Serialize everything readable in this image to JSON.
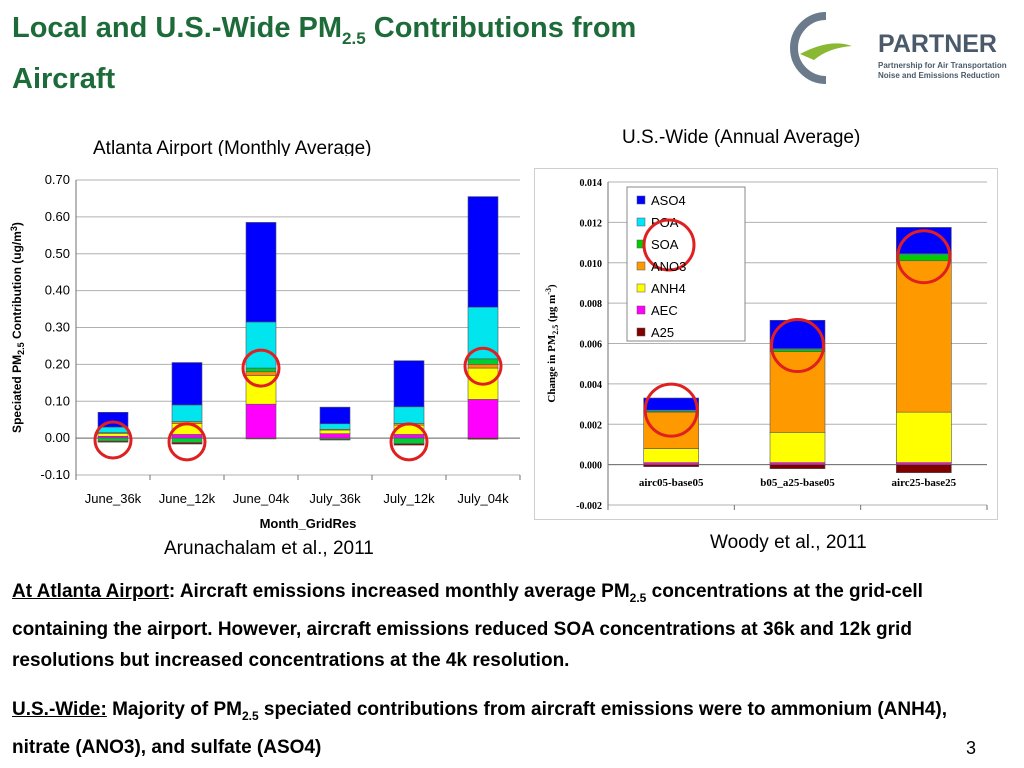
{
  "slide": {
    "title_pre": "Local and U.S.-Wide PM",
    "title_sub": "2.5",
    "title_post": " Contributions from Aircraft",
    "logo": {
      "name": "PARTNER",
      "line1": "Partnership for Air Transportation",
      "line2": "Noise and Emissions Reduction"
    },
    "left_caption": "Atlanta Airport (Monthly Average)",
    "right_caption": "U.S.-Wide (Annual Average)",
    "left_credit": "Arunachalam et al., 2011",
    "right_credit": "Woody et al., 2011",
    "p1": {
      "lead": "At Atlanta Airport",
      "pre": ": Aircraft emissions increased monthly average PM",
      "sub": "2.5",
      "post": " concentrations at the grid-cell containing the airport. However, aircraft emissions reduced SOA concentrations at 36k and 12k grid resolutions but increased concentrations at the 4k resolution."
    },
    "p2": {
      "lead": "U.S.-Wide:",
      "pre": " Majority of  PM",
      "sub": "2.5",
      "post": " speciated contributions from aircraft emissions were to ammonium (ANH4), nitrate (ANO3), and sulfate (ASO4)"
    },
    "page_number": "3",
    "colors": {
      "title": "#1e6b3a",
      "highlight_circle": "#e02020"
    }
  },
  "chart_data": [
    {
      "type": "bar",
      "stacked": true,
      "categories": [
        "June_36k",
        "June_12k",
        "June_04k",
        "July_36k",
        "July_12k",
        "July_04k"
      ],
      "xlabel": "Month_GridRes",
      "ylabel_pre": "Speciated PM",
      "ylabel_sub": "2.5",
      "ylabel_post": " Contribution (ug/m",
      "ylabel_sup": "3",
      "ylabel_end": ")",
      "ylim": [
        -0.1,
        0.7
      ],
      "yticks": [
        "-0.10",
        "0.00",
        "0.10",
        "0.20",
        "0.30",
        "0.40",
        "0.50",
        "0.60",
        "0.70"
      ],
      "ytick_values": [
        -0.1,
        0,
        0.1,
        0.2,
        0.3,
        0.4,
        0.5,
        0.6,
        0.7
      ],
      "grid": true,
      "series": [
        {
          "key": "AEC",
          "color": "#ff00ff",
          "values": [
            0.005,
            0.01,
            0.092,
            0.012,
            0.01,
            0.105
          ]
        },
        {
          "key": "ANH4",
          "color": "#ffff00",
          "values": [
            0.008,
            0.03,
            0.078,
            0.01,
            0.025,
            0.085
          ]
        },
        {
          "key": "ANO3",
          "color": "#ff8c00",
          "values": [
            0.002,
            0.005,
            0.01,
            0.002,
            0.005,
            0.01
          ]
        },
        {
          "key": "SOA",
          "color": "#00cc33",
          "values": [
            -0.008,
            -0.012,
            0.01,
            -0.003,
            -0.015,
            0.015
          ]
        },
        {
          "key": "POA",
          "color": "#00e5ee",
          "values": [
            0.015,
            0.045,
            0.125,
            0.015,
            0.045,
            0.14
          ]
        },
        {
          "key": "ASO4",
          "color": "#0000ff",
          "values": [
            0.04,
            0.115,
            0.27,
            0.045,
            0.125,
            0.3
          ]
        },
        {
          "key": "A25",
          "color": "#8b0000",
          "values": [
            -0.003,
            -0.004,
            -0.002,
            -0.002,
            -0.004,
            -0.003
          ]
        }
      ],
      "highlight_circles": [
        {
          "category": "June_36k",
          "value": -0.005
        },
        {
          "category": "June_12k",
          "value": -0.01
        },
        {
          "category": "June_04k",
          "value": 0.19
        },
        {
          "category": "July_12k",
          "value": -0.01
        },
        {
          "category": "July_04k",
          "value": 0.195
        }
      ]
    },
    {
      "type": "bar",
      "stacked": true,
      "categories": [
        "airc05-base05",
        "b05_a25-base05",
        "airc25-base25"
      ],
      "ylabel_pre": "Change in PM",
      "ylabel_sub": "2.5",
      "ylabel_post": " (μg m",
      "ylabel_sup": "-3",
      "ylabel_end": ")",
      "ylim": [
        -0.002,
        0.014
      ],
      "yticks": [
        "-0.002",
        "0.000",
        "0.002",
        "0.004",
        "0.006",
        "0.008",
        "0.010",
        "0.012",
        "0.014"
      ],
      "ytick_values": [
        -0.002,
        0,
        0.002,
        0.004,
        0.006,
        0.008,
        0.01,
        0.012,
        0.014
      ],
      "grid": true,
      "legend_position": "top-left",
      "legend": [
        "ASO4",
        "POA",
        "SOA",
        "ANO3",
        "ANH4",
        "AEC",
        "A25"
      ],
      "series": [
        {
          "name": "A25",
          "color": "#800000",
          "values": [
            -0.0001,
            -0.0002,
            -0.0004
          ]
        },
        {
          "name": "AEC",
          "color": "#ff00ff",
          "values": [
            0.0001,
            0.0001,
            0.0001
          ]
        },
        {
          "name": "ANH4",
          "color": "#ffff00",
          "values": [
            0.0007,
            0.0015,
            0.0025
          ]
        },
        {
          "name": "ANO3",
          "color": "#ff9900",
          "values": [
            0.0018,
            0.004,
            0.0075
          ]
        },
        {
          "name": "SOA",
          "color": "#00cc00",
          "values": [
            5e-05,
            0.0001,
            0.0003
          ]
        },
        {
          "name": "POA",
          "color": "#00e5ff",
          "values": [
            5e-05,
            5e-05,
            5e-05
          ]
        },
        {
          "name": "ASO4",
          "color": "#0000ff",
          "values": [
            0.0006,
            0.0014,
            0.0013
          ]
        }
      ],
      "highlight_circles": [
        {
          "category": "airc05-base05",
          "value": 0.0027
        },
        {
          "category": "b05_a25-base05",
          "value": 0.0059
        },
        {
          "category": "airc25-base25",
          "value": 0.0103
        }
      ],
      "legend_circle_item": "SOA"
    }
  ]
}
